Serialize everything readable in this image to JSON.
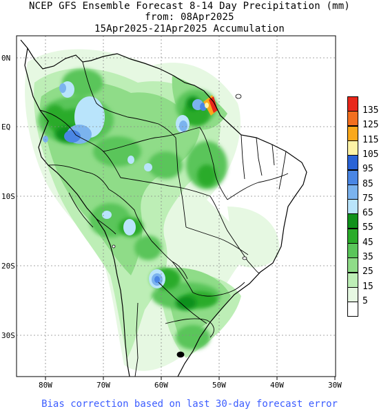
{
  "title": {
    "line1": "NCEP GFS Ensemble Forecast 8-14 Day Precipitation (mm)",
    "line2": "from: 08Apr2025",
    "line3": "15Apr2025-21Apr2025 Accumulation"
  },
  "axes": {
    "lat_labels": [
      "0N",
      "EQ",
      "10S",
      "20S",
      "30S"
    ],
    "lon_labels": [
      "80W",
      "70W",
      "60W",
      "50W",
      "40W",
      "30W"
    ]
  },
  "legend": {
    "entries": [
      {
        "label": "135",
        "color": "#e8271b"
      },
      {
        "label": "125",
        "color": "#f26f1f"
      },
      {
        "label": "115",
        "color": "#f9a81c"
      },
      {
        "label": "105",
        "color": "#fef3a6"
      },
      {
        "label": "95",
        "color": "#2a63d6"
      },
      {
        "label": "85",
        "color": "#4a86e4"
      },
      {
        "label": "75",
        "color": "#7bb3ee"
      },
      {
        "label": "65",
        "color": "#b9e4fb"
      },
      {
        "label": "55",
        "color": "#10911c"
      },
      {
        "label": "45",
        "color": "#2aab2a"
      },
      {
        "label": "35",
        "color": "#5ac55a"
      },
      {
        "label": "25",
        "color": "#8fdc88"
      },
      {
        "label": "15",
        "color": "#bdeeb6"
      },
      {
        "label": "5",
        "color": "#e6f8e2"
      },
      {
        "label": "",
        "color": "#ffffff"
      }
    ]
  },
  "footer": "Bias correction based on last 30-day forecast error"
}
